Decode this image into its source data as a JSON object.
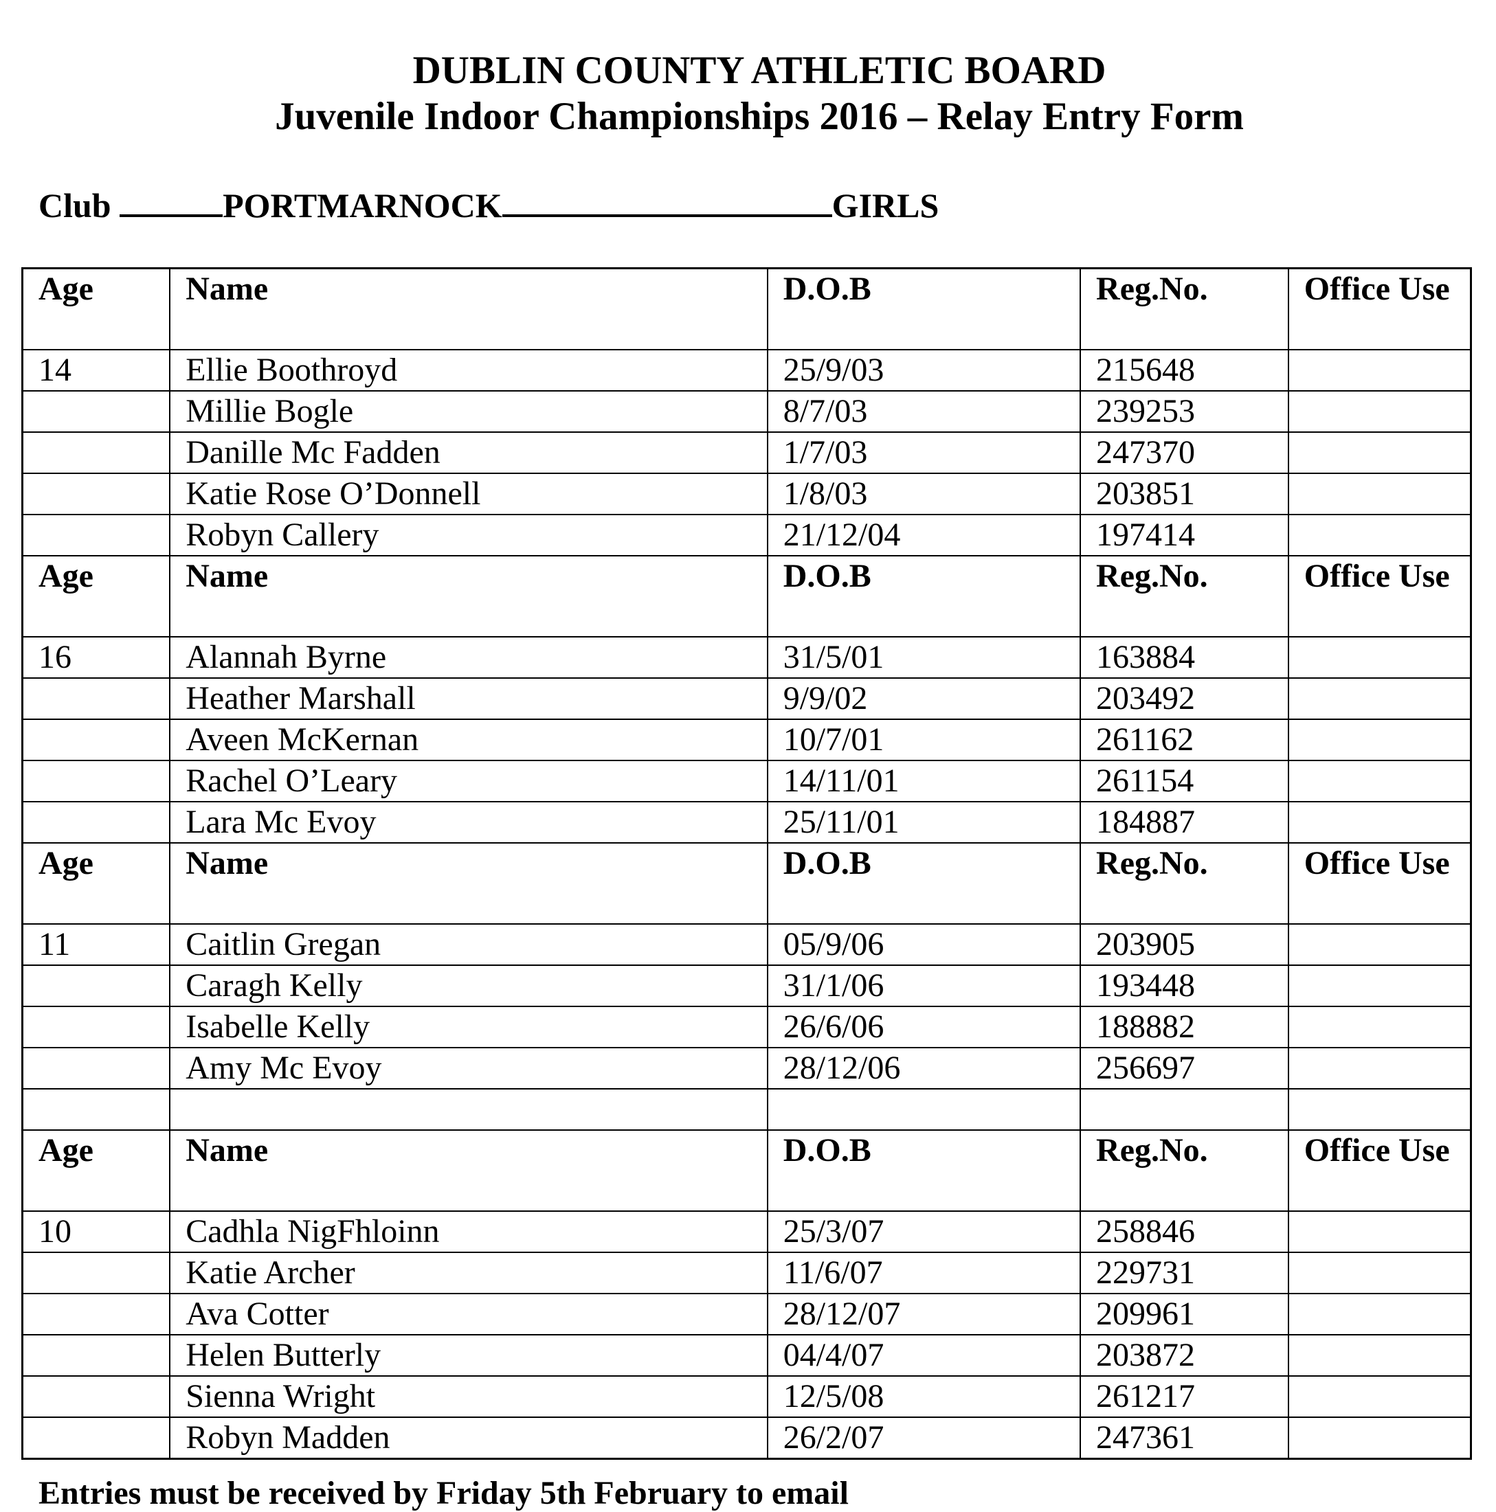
{
  "header": {
    "title": "DUBLIN COUNTY ATHLETIC BOARD",
    "subtitle": "Juvenile Indoor Championships 2016 – Relay Entry Form"
  },
  "club": {
    "label": "Club",
    "name": "PORTMARNOCK",
    "category": "GIRLS"
  },
  "columns": [
    "Age",
    "Name",
    "D.O.B",
    "Reg.No.",
    "Office Use"
  ],
  "groups": [
    {
      "age": "14",
      "rows": [
        [
          "Ellie Boothroyd",
          "25/9/03",
          "215648"
        ],
        [
          "Millie Bogle",
          "8/7/03",
          "239253"
        ],
        [
          "Danille Mc Fadden",
          "1/7/03",
          "247370"
        ],
        [
          "Katie Rose O’Donnell",
          "1/8/03",
          "203851"
        ],
        [
          "Robyn Callery",
          "21/12/04",
          "197414"
        ]
      ]
    },
    {
      "age": "16",
      "rows": [
        [
          "Alannah Byrne",
          "31/5/01",
          "163884"
        ],
        [
          "Heather Marshall",
          "9/9/02",
          "203492"
        ],
        [
          "Aveen McKernan",
          "10/7/01",
          "261162"
        ],
        [
          "Rachel O’Leary",
          "14/11/01",
          "261154"
        ],
        [
          "Lara Mc Evoy",
          "25/11/01",
          "184887"
        ]
      ]
    },
    {
      "age": "11",
      "rows": [
        [
          "Caitlin Gregan",
          "05/9/06",
          "203905"
        ],
        [
          "Caragh Kelly",
          "31/1/06",
          "193448"
        ],
        [
          "Isabelle Kelly",
          "26/6/06",
          "188882"
        ],
        [
          "Amy Mc Evoy",
          "28/12/06",
          "256697"
        ],
        [
          "",
          "",
          ""
        ]
      ]
    },
    {
      "age": "10",
      "rows": [
        [
          "Cadhla NigFhloinn",
          "25/3/07",
          "258846"
        ],
        [
          "Katie Archer",
          "11/6/07",
          "229731"
        ],
        [
          "Ava Cotter",
          "28/12/07",
          "209961"
        ],
        [
          "Helen Butterly",
          "04/4/07",
          "203872"
        ],
        [
          "Sienna Wright",
          "12/5/08",
          "261217"
        ],
        [
          "Robyn Madden",
          "26/2/07",
          "247361"
        ]
      ]
    }
  ],
  "footer": {
    "text": "Entries must be received by Friday 5th February to email"
  }
}
